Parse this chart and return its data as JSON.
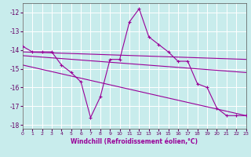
{
  "background_color": "#c8ecec",
  "grid_color": "#b0d8d8",
  "line_color": "#990099",
  "marker": "+",
  "xlabel": "Windchill (Refroidissement éolien,°C)",
  "xlim": [
    0,
    23
  ],
  "ylim": [
    -18.2,
    -11.5
  ],
  "yticks": [
    -18,
    -17,
    -16,
    -15,
    -14,
    -13,
    -12
  ],
  "xticks": [
    0,
    1,
    2,
    3,
    4,
    5,
    6,
    7,
    8,
    9,
    10,
    11,
    12,
    13,
    14,
    15,
    16,
    17,
    18,
    19,
    20,
    21,
    22,
    23
  ],
  "zigzag_x": [
    0,
    1,
    2,
    3,
    4,
    5,
    6,
    7,
    8,
    9,
    10,
    11,
    12,
    13,
    14,
    15,
    16,
    17,
    18,
    19,
    20,
    21,
    22,
    23
  ],
  "zigzag_y": [
    -13.8,
    -14.1,
    -14.1,
    -14.1,
    -14.8,
    -15.2,
    -15.7,
    -17.6,
    -16.5,
    -14.5,
    -14.5,
    -12.5,
    -11.8,
    -13.3,
    -13.7,
    -14.1,
    -14.6,
    -14.6,
    -15.8,
    -16.0,
    -17.1,
    -17.5,
    -17.5,
    -17.5
  ],
  "trend_lines": [
    {
      "x": [
        0,
        23
      ],
      "y": [
        -14.1,
        -14.5
      ]
    },
    {
      "x": [
        0,
        23
      ],
      "y": [
        -14.3,
        -15.2
      ]
    },
    {
      "x": [
        0,
        23
      ],
      "y": [
        -14.8,
        -17.5
      ]
    }
  ]
}
